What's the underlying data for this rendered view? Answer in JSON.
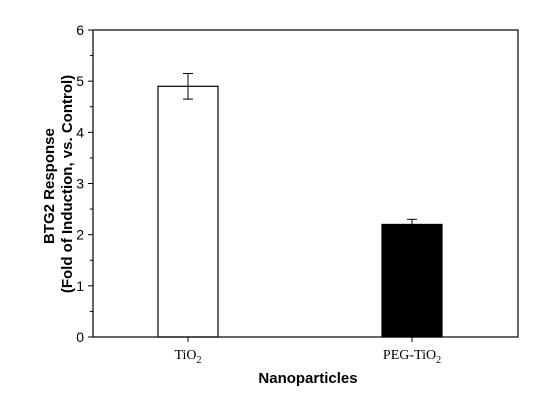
{
  "chart_data": {
    "type": "bar",
    "categories": [
      "TiO2",
      "PEG-TiO2"
    ],
    "category_labels": [
      {
        "base": "TiO",
        "sub": "2"
      },
      {
        "base": "PEG-TiO",
        "sub": "2"
      }
    ],
    "values": [
      4.9,
      2.2
    ],
    "error": [
      0.25,
      0.1
    ],
    "bar_colors": [
      "#ffffff",
      "#000000"
    ],
    "bar_edge_color": "#000000",
    "title": "",
    "xlabel": "Nanoparticles",
    "ylabel_lines": [
      "BTG2 Response",
      "(Fold of Induction, vs. Control)"
    ],
    "ylim": [
      0,
      6
    ],
    "yticks": [
      0,
      1,
      2,
      3,
      4,
      5,
      6
    ],
    "grid": false,
    "legend": false
  }
}
